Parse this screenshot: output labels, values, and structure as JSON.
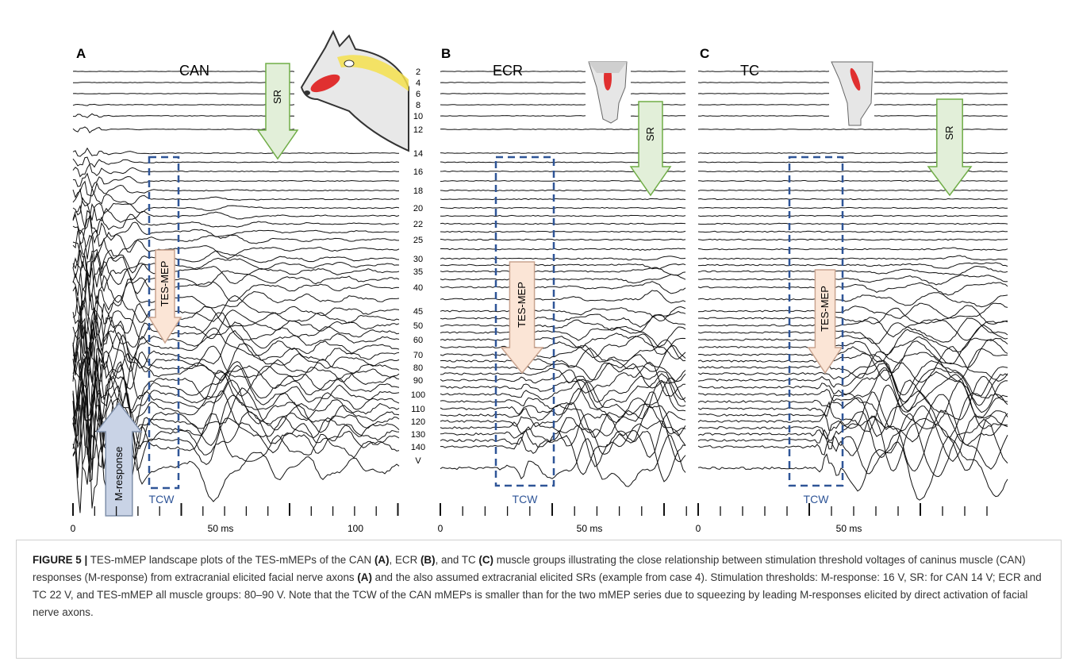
{
  "panels": [
    {
      "label": "A",
      "muscle": "CAN",
      "sr": "SR",
      "mep": "TES-MEP",
      "mresponse": "M-response",
      "window": "TCW",
      "axis": [
        "0",
        "50 ms",
        "100"
      ]
    },
    {
      "label": "B",
      "muscle": "ECR",
      "sr": "SR",
      "mep": "TES-MEP",
      "window": "TCW",
      "axis": [
        "0",
        "50 ms"
      ]
    },
    {
      "label": "C",
      "muscle": "TC",
      "sr": "SR",
      "mep": "TES-MEP",
      "window": "TCW",
      "axis": [
        "0",
        "50 ms"
      ]
    }
  ],
  "voltages": [
    "2",
    "4",
    "6",
    "8",
    "10",
    "12",
    "14",
    "16",
    "18",
    "20",
    "22",
    "25",
    "30",
    "35",
    "40",
    "45",
    "50",
    "60",
    "70",
    "80",
    "90",
    "100",
    "110",
    "120",
    "130",
    "140",
    "V"
  ],
  "caption": [
    {
      "text": "FIGURE 5 |",
      "bold": true
    },
    {
      "text": " TES-mMEP landscape plots of the TES-mMEPs of the CAN ",
      "bold": false
    },
    {
      "text": "(A)",
      "bold": true
    },
    {
      "text": ", ECR ",
      "bold": false
    },
    {
      "text": "(B)",
      "bold": true
    },
    {
      "text": ", and TC ",
      "bold": false
    },
    {
      "text": "(C)",
      "bold": true
    },
    {
      "text": " muscle groups illustrating the close relationship between stimulation threshold voltages of caninus muscle (CAN) responses (M-response) from extracranial elicited facial nerve axons ",
      "bold": false
    },
    {
      "text": "(A)",
      "bold": true
    },
    {
      "text": " and the also assumed extracranial elicited SRs (example from case 4). Stimulation thresholds: M-response: 16 V, SR: for CAN 14 V; ECR and TC 22 V, and TES-mMEP all muscle groups: 80–90 V. Note that the TCW of the CAN mMEPs is smaller than for the two mMEP series due to squeezing by leading M-responses elicited by direct activation of facial nerve axons.",
      "bold": false
    }
  ]
}
